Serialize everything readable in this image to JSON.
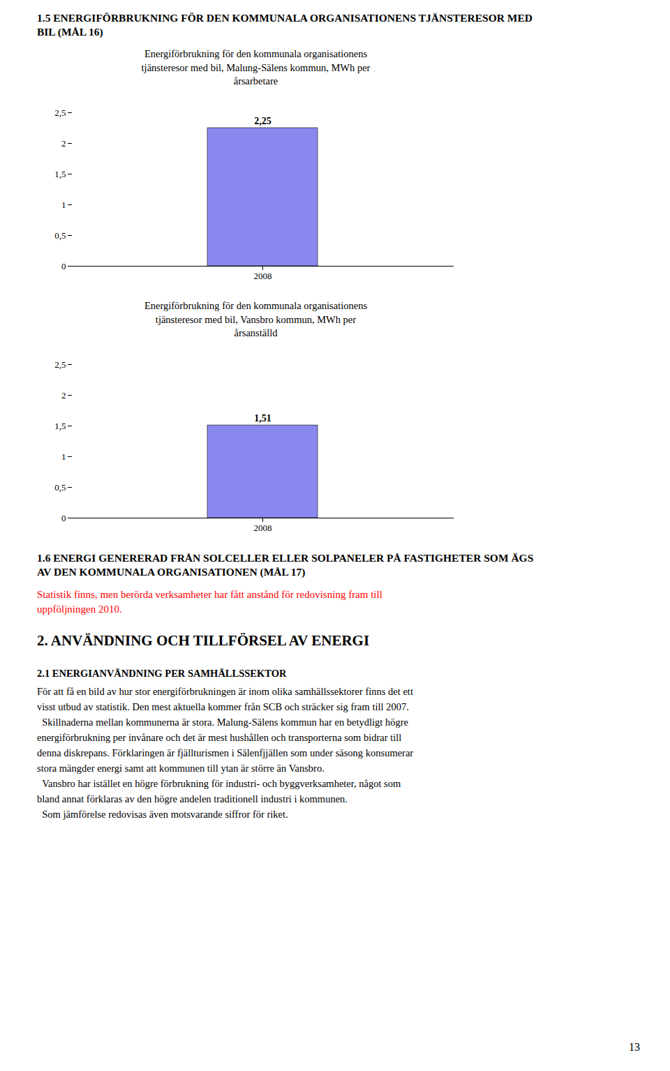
{
  "heading1": [
    "1.5 ENERGIFÖRBRUKNING FÖR DEN KOMMUNALA ORGANISATIONENS TJÄNSTERESOR MED",
    "BIL (MÅL 16)"
  ],
  "chart_data": [
    {
      "type": "bar",
      "title": "Energiförbrukning för den kommunala organisationens\ntjänsteresor med bil, Malung-Sälens kommun, MWh per\nårsarbetare",
      "categories": [
        "2008"
      ],
      "values": [
        2.25
      ],
      "value_labels": [
        "2,25"
      ],
      "data_labels": true,
      "color": "#8888EE",
      "ylim": [
        0,
        2.5
      ],
      "yticks": [
        0,
        {
          "value": 0.5,
          "label": "0,5"
        },
        1,
        {
          "value": 1.5,
          "label": "1,5"
        },
        2,
        {
          "value": 2.5,
          "label": "2,5"
        }
      ],
      "grid": false
    },
    {
      "type": "bar",
      "title": "Energiförbrukning för den kommunala organisationens\ntjänsteresor med bil, Vansbro kommun, MWh per\nårsanställd",
      "categories": [
        "2008"
      ],
      "values": [
        1.51
      ],
      "value_labels": [
        "1,51"
      ],
      "data_labels": true,
      "color": "#8888EE",
      "ylim": [
        0,
        2.5
      ],
      "yticks": [
        0,
        {
          "value": 0.5,
          "label": "0,5"
        },
        1,
        {
          "value": 1.5,
          "label": "1,5"
        },
        2,
        {
          "value": 2.5,
          "label": "2,5"
        }
      ],
      "grid": false
    }
  ],
  "heading2": [
    "1.6 ENERGI GENERERAD FRÅN SOLCELLER ELLER SOLPANELER PÅ FASTIGHETER SOM ÄGS",
    "AV DEN KOMMUNALA ORGANISATIONEN (MÅL 17)"
  ],
  "note": [
    "Statistik finns, men berörda verksamheter har fått anstånd för redovisning fram till",
    "uppföljningen 2010."
  ],
  "note_color": "red",
  "section2_heading": "2. ANVÄNDNING OCH TILLFÖRSEL AV ENERGI",
  "section21_heading": "2.1 ENERGIANVÄNDNING PER SAMHÄLLSSEKTOR",
  "body_text": [
    "För att få en bild av hur stor energiförbrukningen är inom olika samhällssektorer finns det ett",
    "visst utbud av statistik. Den mest aktuella kommer från SCB och sträcker sig fram till 2007.",
    "  Skillnaderna mellan kommunerna är stora. Malung-Sälens kommun har en betydligt högre",
    "energiförbrukning per invånare och det är mest hushållen och transporterna som bidrar till",
    "denna diskrepans. Förklaringen är fjällturismen i Sälenfjjällen som under säsong konsumerar",
    "stora mängder energi samt att kommunen till ytan är större än Vansbro.",
    "  Vansbro har istället en högre förbrukning för industri- och byggverksamheter, något som",
    "bland annat förklaras av den högre andelen traditionell industri i kommunen.",
    "  Som jämförelse redovisas även motsvarande siffror för riket."
  ],
  "page_number": "13"
}
